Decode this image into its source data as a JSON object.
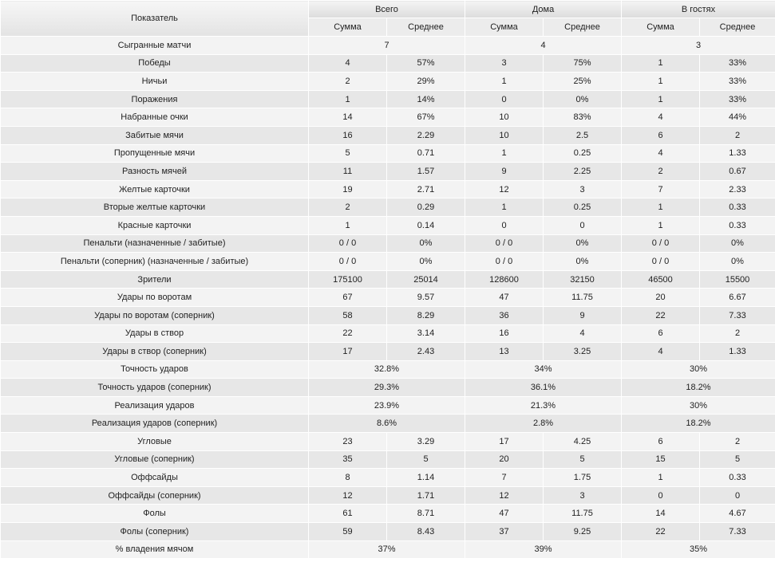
{
  "header": {
    "indicator": "Показатель",
    "groups": [
      "Всего",
      "Дома",
      "В гостях"
    ],
    "sub": [
      "Сумма",
      "Среднее"
    ]
  },
  "rows": [
    {
      "label": "Сыгранные матчи",
      "merged": true,
      "values": [
        "7",
        "4",
        "3"
      ]
    },
    {
      "label": "Победы",
      "values": [
        "4",
        "57%",
        "3",
        "75%",
        "1",
        "33%"
      ]
    },
    {
      "label": "Ничьи",
      "values": [
        "2",
        "29%",
        "1",
        "25%",
        "1",
        "33%"
      ]
    },
    {
      "label": "Поражения",
      "values": [
        "1",
        "14%",
        "0",
        "0%",
        "1",
        "33%"
      ]
    },
    {
      "label": "Набранные очки",
      "values": [
        "14",
        "67%",
        "10",
        "83%",
        "4",
        "44%"
      ]
    },
    {
      "label": "Забитые мячи",
      "values": [
        "16",
        "2.29",
        "10",
        "2.5",
        "6",
        "2"
      ]
    },
    {
      "label": "Пропущенные мячи",
      "values": [
        "5",
        "0.71",
        "1",
        "0.25",
        "4",
        "1.33"
      ]
    },
    {
      "label": "Разность мячей",
      "values": [
        "11",
        "1.57",
        "9",
        "2.25",
        "2",
        "0.67"
      ]
    },
    {
      "label": "Желтые карточки",
      "values": [
        "19",
        "2.71",
        "12",
        "3",
        "7",
        "2.33"
      ]
    },
    {
      "label": "Вторые желтые карточки",
      "values": [
        "2",
        "0.29",
        "1",
        "0.25",
        "1",
        "0.33"
      ]
    },
    {
      "label": "Красные карточки",
      "values": [
        "1",
        "0.14",
        "0",
        "0",
        "1",
        "0.33"
      ]
    },
    {
      "label": "Пенальти (назначенные / забитые)",
      "values": [
        "0 / 0",
        "0%",
        "0 / 0",
        "0%",
        "0 / 0",
        "0%"
      ]
    },
    {
      "label": "Пенальти (соперник) (назначенные / забитые)",
      "values": [
        "0 / 0",
        "0%",
        "0 / 0",
        "0%",
        "0 / 0",
        "0%"
      ]
    },
    {
      "label": "Зрители",
      "values": [
        "175100",
        "25014",
        "128600",
        "32150",
        "46500",
        "15500"
      ]
    },
    {
      "label": "Удары по воротам",
      "values": [
        "67",
        "9.57",
        "47",
        "11.75",
        "20",
        "6.67"
      ]
    },
    {
      "label": "Удары по воротам (соперник)",
      "values": [
        "58",
        "8.29",
        "36",
        "9",
        "22",
        "7.33"
      ]
    },
    {
      "label": "Удары в створ",
      "values": [
        "22",
        "3.14",
        "16",
        "4",
        "6",
        "2"
      ]
    },
    {
      "label": "Удары в створ (соперник)",
      "values": [
        "17",
        "2.43",
        "13",
        "3.25",
        "4",
        "1.33"
      ]
    },
    {
      "label": "Точность ударов",
      "merged": true,
      "values": [
        "32.8%",
        "34%",
        "30%"
      ]
    },
    {
      "label": "Точность ударов (соперник)",
      "merged": true,
      "values": [
        "29.3%",
        "36.1%",
        "18.2%"
      ]
    },
    {
      "label": "Реализация ударов",
      "merged": true,
      "values": [
        "23.9%",
        "21.3%",
        "30%"
      ]
    },
    {
      "label": "Реализация ударов (соперник)",
      "merged": true,
      "values": [
        "8.6%",
        "2.8%",
        "18.2%"
      ]
    },
    {
      "label": "Угловые",
      "values": [
        "23",
        "3.29",
        "17",
        "4.25",
        "6",
        "2"
      ]
    },
    {
      "label": "Угловые (соперник)",
      "values": [
        "35",
        "5",
        "20",
        "5",
        "15",
        "5"
      ]
    },
    {
      "label": "Оффсайды",
      "values": [
        "8",
        "1.14",
        "7",
        "1.75",
        "1",
        "0.33"
      ]
    },
    {
      "label": "Оффсайды (соперник)",
      "values": [
        "12",
        "1.71",
        "12",
        "3",
        "0",
        "0"
      ]
    },
    {
      "label": "Фолы",
      "values": [
        "61",
        "8.71",
        "47",
        "11.75",
        "14",
        "4.67"
      ]
    },
    {
      "label": "Фолы (соперник)",
      "values": [
        "59",
        "8.43",
        "37",
        "9.25",
        "22",
        "7.33"
      ]
    },
    {
      "label": "% владения мячом",
      "merged": true,
      "values": [
        "37%",
        "39%",
        "35%"
      ]
    }
  ]
}
